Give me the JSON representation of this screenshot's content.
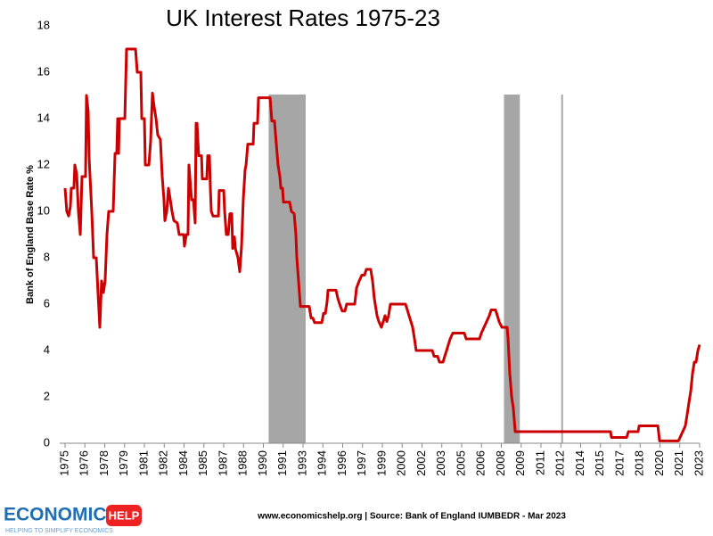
{
  "chart_data": {
    "type": "line",
    "title": "UK Interest Rates 1975-23",
    "y_label": "Bank of England Base Rate %",
    "color": "#cc0000",
    "shade_color": "#a6a6a6",
    "shaded_periods": [
      [
        1990.4,
        1993.2
      ],
      [
        2008.2,
        2009.4
      ]
    ],
    "reference_x": [
      2012.6
    ],
    "grid": false,
    "xlim": [
      1975,
      2023
    ],
    "ylim": [
      0,
      18
    ],
    "yticks": [
      0,
      2,
      4,
      6,
      8,
      10,
      12,
      14,
      16,
      18
    ],
    "xticks": [
      1975,
      {
        "value": 1976.5,
        "label": "1976"
      },
      1978,
      {
        "value": 1979.5,
        "label": "1979"
      },
      1981,
      {
        "value": 1982.5,
        "label": "1982"
      },
      1984,
      {
        "value": 1985.5,
        "label": "1985"
      },
      1987,
      {
        "value": 1988.5,
        "label": "1988"
      },
      1990,
      {
        "value": 1991.5,
        "label": "1991"
      },
      1993,
      {
        "value": 1994.5,
        "label": "1994"
      },
      1996,
      {
        "value": 1997.5,
        "label": "1997"
      },
      1999,
      {
        "value": 2000.5,
        "label": "2000"
      },
      2002,
      {
        "value": 2003.5,
        "label": "2003"
      },
      2005,
      {
        "value": 2006.5,
        "label": "2006"
      },
      2008,
      {
        "value": 2009.5,
        "label": "2009"
      },
      2011,
      {
        "value": 2012.5,
        "label": "2012"
      },
      2014,
      {
        "value": 2015.5,
        "label": "2015"
      },
      2017,
      {
        "value": 2018.5,
        "label": "2018"
      },
      2020,
      {
        "value": 2021.5,
        "label": "2021"
      },
      2023
    ],
    "x": [
      1975.0,
      1975.13,
      1975.27,
      1975.4,
      1975.47,
      1975.67,
      1975.74,
      1975.88,
      1976.01,
      1976.15,
      1976.28,
      1976.55,
      1976.62,
      1976.75,
      1976.82,
      1977.02,
      1977.16,
      1977.36,
      1977.49,
      1977.63,
      1977.76,
      1977.9,
      1978.03,
      1978.17,
      1978.3,
      1978.64,
      1978.78,
      1978.91,
      1978.98,
      1979.05,
      1979.11,
      1979.52,
      1979.65,
      1980.33,
      1980.46,
      1980.73,
      1980.8,
      1981.0,
      1981.07,
      1981.34,
      1981.47,
      1981.61,
      1981.74,
      1981.88,
      1982.01,
      1982.21,
      1982.35,
      1982.48,
      1982.55,
      1982.69,
      1982.82,
      1982.96,
      1983.09,
      1983.23,
      1983.49,
      1983.63,
      1983.97,
      1984.03,
      1984.17,
      1984.3,
      1984.37,
      1984.57,
      1984.71,
      1984.84,
      1984.91,
      1984.98,
      1985.11,
      1985.32,
      1985.38,
      1985.72,
      1985.79,
      1985.92,
      1985.99,
      1986.06,
      1986.19,
      1986.6,
      1986.66,
      1987.0,
      1987.07,
      1987.2,
      1987.34,
      1987.47,
      1987.61,
      1987.68,
      1987.81,
      1987.88,
      1988.08,
      1988.21,
      1988.35,
      1988.48,
      1988.62,
      1988.69,
      1988.82,
      1989.23,
      1989.29,
      1989.56,
      1989.63,
      1990.51,
      1990.64,
      1990.84,
      1990.98,
      1991.11,
      1991.25,
      1991.32,
      1991.45,
      1991.52,
      1991.99,
      1992.12,
      1992.33,
      1992.46,
      1992.53,
      1992.66,
      1992.8,
      1993.47,
      1993.61,
      1993.74,
      1993.88,
      1994.42,
      1994.55,
      1994.69,
      1994.82,
      1994.89,
      1995.5,
      1995.63,
      1995.83,
      1995.97,
      1996.17,
      1996.3,
      1996.91,
      1997.05,
      1997.25,
      1997.45,
      1997.65,
      1997.79,
      1998.12,
      1998.26,
      1998.39,
      1998.6,
      1998.73,
      1998.93,
      1999.07,
      1999.2,
      1999.34,
      1999.47,
      1999.61,
      2000.75,
      2000.89,
      2001.02,
      2001.16,
      2001.29,
      2001.43,
      2001.56,
      2002.78,
      2002.91,
      2003.18,
      2003.32,
      2003.59,
      2003.72,
      2003.86,
      2003.99,
      2004.13,
      2004.33,
      2005.2,
      2005.34,
      2006.35,
      2006.49,
      2006.69,
      2006.89,
      2007.09,
      2007.23,
      2007.56,
      2007.7,
      2007.83,
      2008.04,
      2008.44,
      2008.51,
      2008.64,
      2008.78,
      2008.91,
      2009.05,
      2016.26,
      2016.33,
      2017.48,
      2017.61,
      2018.35,
      2018.42,
      2019.84,
      2019.97,
      2021.39,
      2021.52,
      2021.72,
      2021.92,
      2022.06,
      2022.19,
      2022.33,
      2022.46,
      2022.6,
      2022.73,
      2022.87,
      2023.0
    ],
    "values": [
      11,
      10,
      9.8,
      10.2,
      11,
      11,
      12,
      11.6,
      10,
      9,
      11.5,
      11.5,
      15,
      14.3,
      12.3,
      10,
      8,
      8,
      6.5,
      5,
      7,
      6.5,
      7,
      9,
      10,
      10,
      12.5,
      12.5,
      14,
      12.5,
      14,
      14,
      17,
      17,
      16,
      16,
      14,
      14,
      12,
      12,
      13,
      15.1,
      14.5,
      14,
      13.3,
      13.1,
      11.5,
      10.5,
      9.6,
      10,
      11,
      10.5,
      10,
      9.6,
      9.5,
      9,
      9,
      8.5,
      9,
      9,
      12,
      10.5,
      10.5,
      9.5,
      13.8,
      13.8,
      12.4,
      12.4,
      11.4,
      11.4,
      12.4,
      12.4,
      11,
      10,
      9.8,
      9.8,
      10.9,
      10.9,
      10,
      9,
      9,
      9.9,
      9.9,
      8.4,
      8.9,
      8.4,
      8,
      7.4,
      8.5,
      10.5,
      11.8,
      12,
      12.9,
      12.9,
      13.8,
      13.8,
      14.9,
      14.9,
      13.9,
      13.9,
      12.9,
      12,
      11.5,
      11,
      11,
      10.4,
      10.4,
      10,
      9.9,
      9,
      8,
      7,
      5.9,
      5.9,
      5.4,
      5.4,
      5.2,
      5.2,
      5.6,
      5.6,
      6.1,
      6.6,
      6.6,
      6.25,
      5.9,
      5.7,
      5.7,
      6,
      6,
      6.7,
      7,
      7.25,
      7.25,
      7.5,
      7.5,
      7,
      6.25,
      5.5,
      5.25,
      5,
      5.25,
      5.5,
      5.25,
      5.5,
      6,
      6,
      5.75,
      5.5,
      5.25,
      5,
      4.5,
      4,
      4,
      3.75,
      3.75,
      3.5,
      3.5,
      3.75,
      4,
      4.25,
      4.5,
      4.75,
      4.75,
      4.5,
      4.5,
      4.75,
      5,
      5.25,
      5.5,
      5.75,
      5.75,
      5.5,
      5.25,
      5,
      5,
      4.5,
      3,
      2,
      1.5,
      0.5,
      0.5,
      0.25,
      0.25,
      0.5,
      0.5,
      0.75,
      0.75,
      0.1,
      0.1,
      0.25,
      0.5,
      0.75,
      1.25,
      1.75,
      2.25,
      3,
      3.5,
      3.5,
      4,
      4.25
    ]
  },
  "footer": {
    "brand": "ECONOMICS",
    "brand_badge": "HELP",
    "tagline": "HELPING TO SIMPLIFY ECONOMICS",
    "source": "www.economicshelp.org | Source: Bank of England IUMBEDR - Mar 2023"
  }
}
